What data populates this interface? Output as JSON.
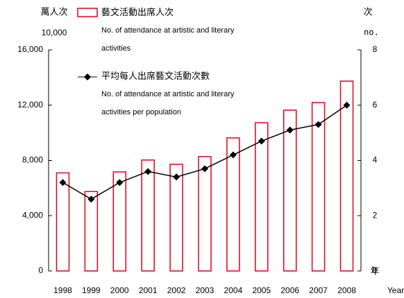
{
  "chart_data": {
    "type": "bar",
    "y_label": "萬人次",
    "y_unit": "10,000",
    "y2_label": "次",
    "y2_unit": "no.",
    "x_label": "年",
    "x_label_en": "Year",
    "categories": [
      "1998",
      "1999",
      "2000",
      "2001",
      "2002",
      "2003",
      "2004",
      "2005",
      "2006",
      "2007",
      "2008"
    ],
    "series": [
      {
        "name": "藝文活動出席人次",
        "name_en": "No. of attendance at artistic and literary activities",
        "type": "bar",
        "color": "#e0001b",
        "values": [
          7100,
          5750,
          7170,
          8030,
          7720,
          8280,
          9630,
          10730,
          11640,
          12190,
          13740
        ]
      },
      {
        "name": "平均每人出席藝文活動次數",
        "name_en": "No. of attendance at artistic and literary activities per population",
        "type": "line",
        "axis": "y2",
        "color": "#000000",
        "values": [
          3.2,
          2.6,
          3.2,
          3.6,
          3.4,
          3.7,
          4.2,
          4.7,
          5.1,
          5.3,
          6.0
        ]
      }
    ],
    "ylim": [
      0,
      16000
    ],
    "yticks": [
      0,
      {
        "value": 4000,
        "label": "4,000"
      },
      {
        "value": 8000,
        "label": "8,000"
      },
      {
        "value": 12000,
        "label": "12,000"
      },
      {
        "value": 16000,
        "label": "16,000"
      }
    ],
    "y2lim": [
      0,
      8
    ],
    "y2ticks": [
      0,
      2,
      4,
      6,
      8
    ]
  }
}
